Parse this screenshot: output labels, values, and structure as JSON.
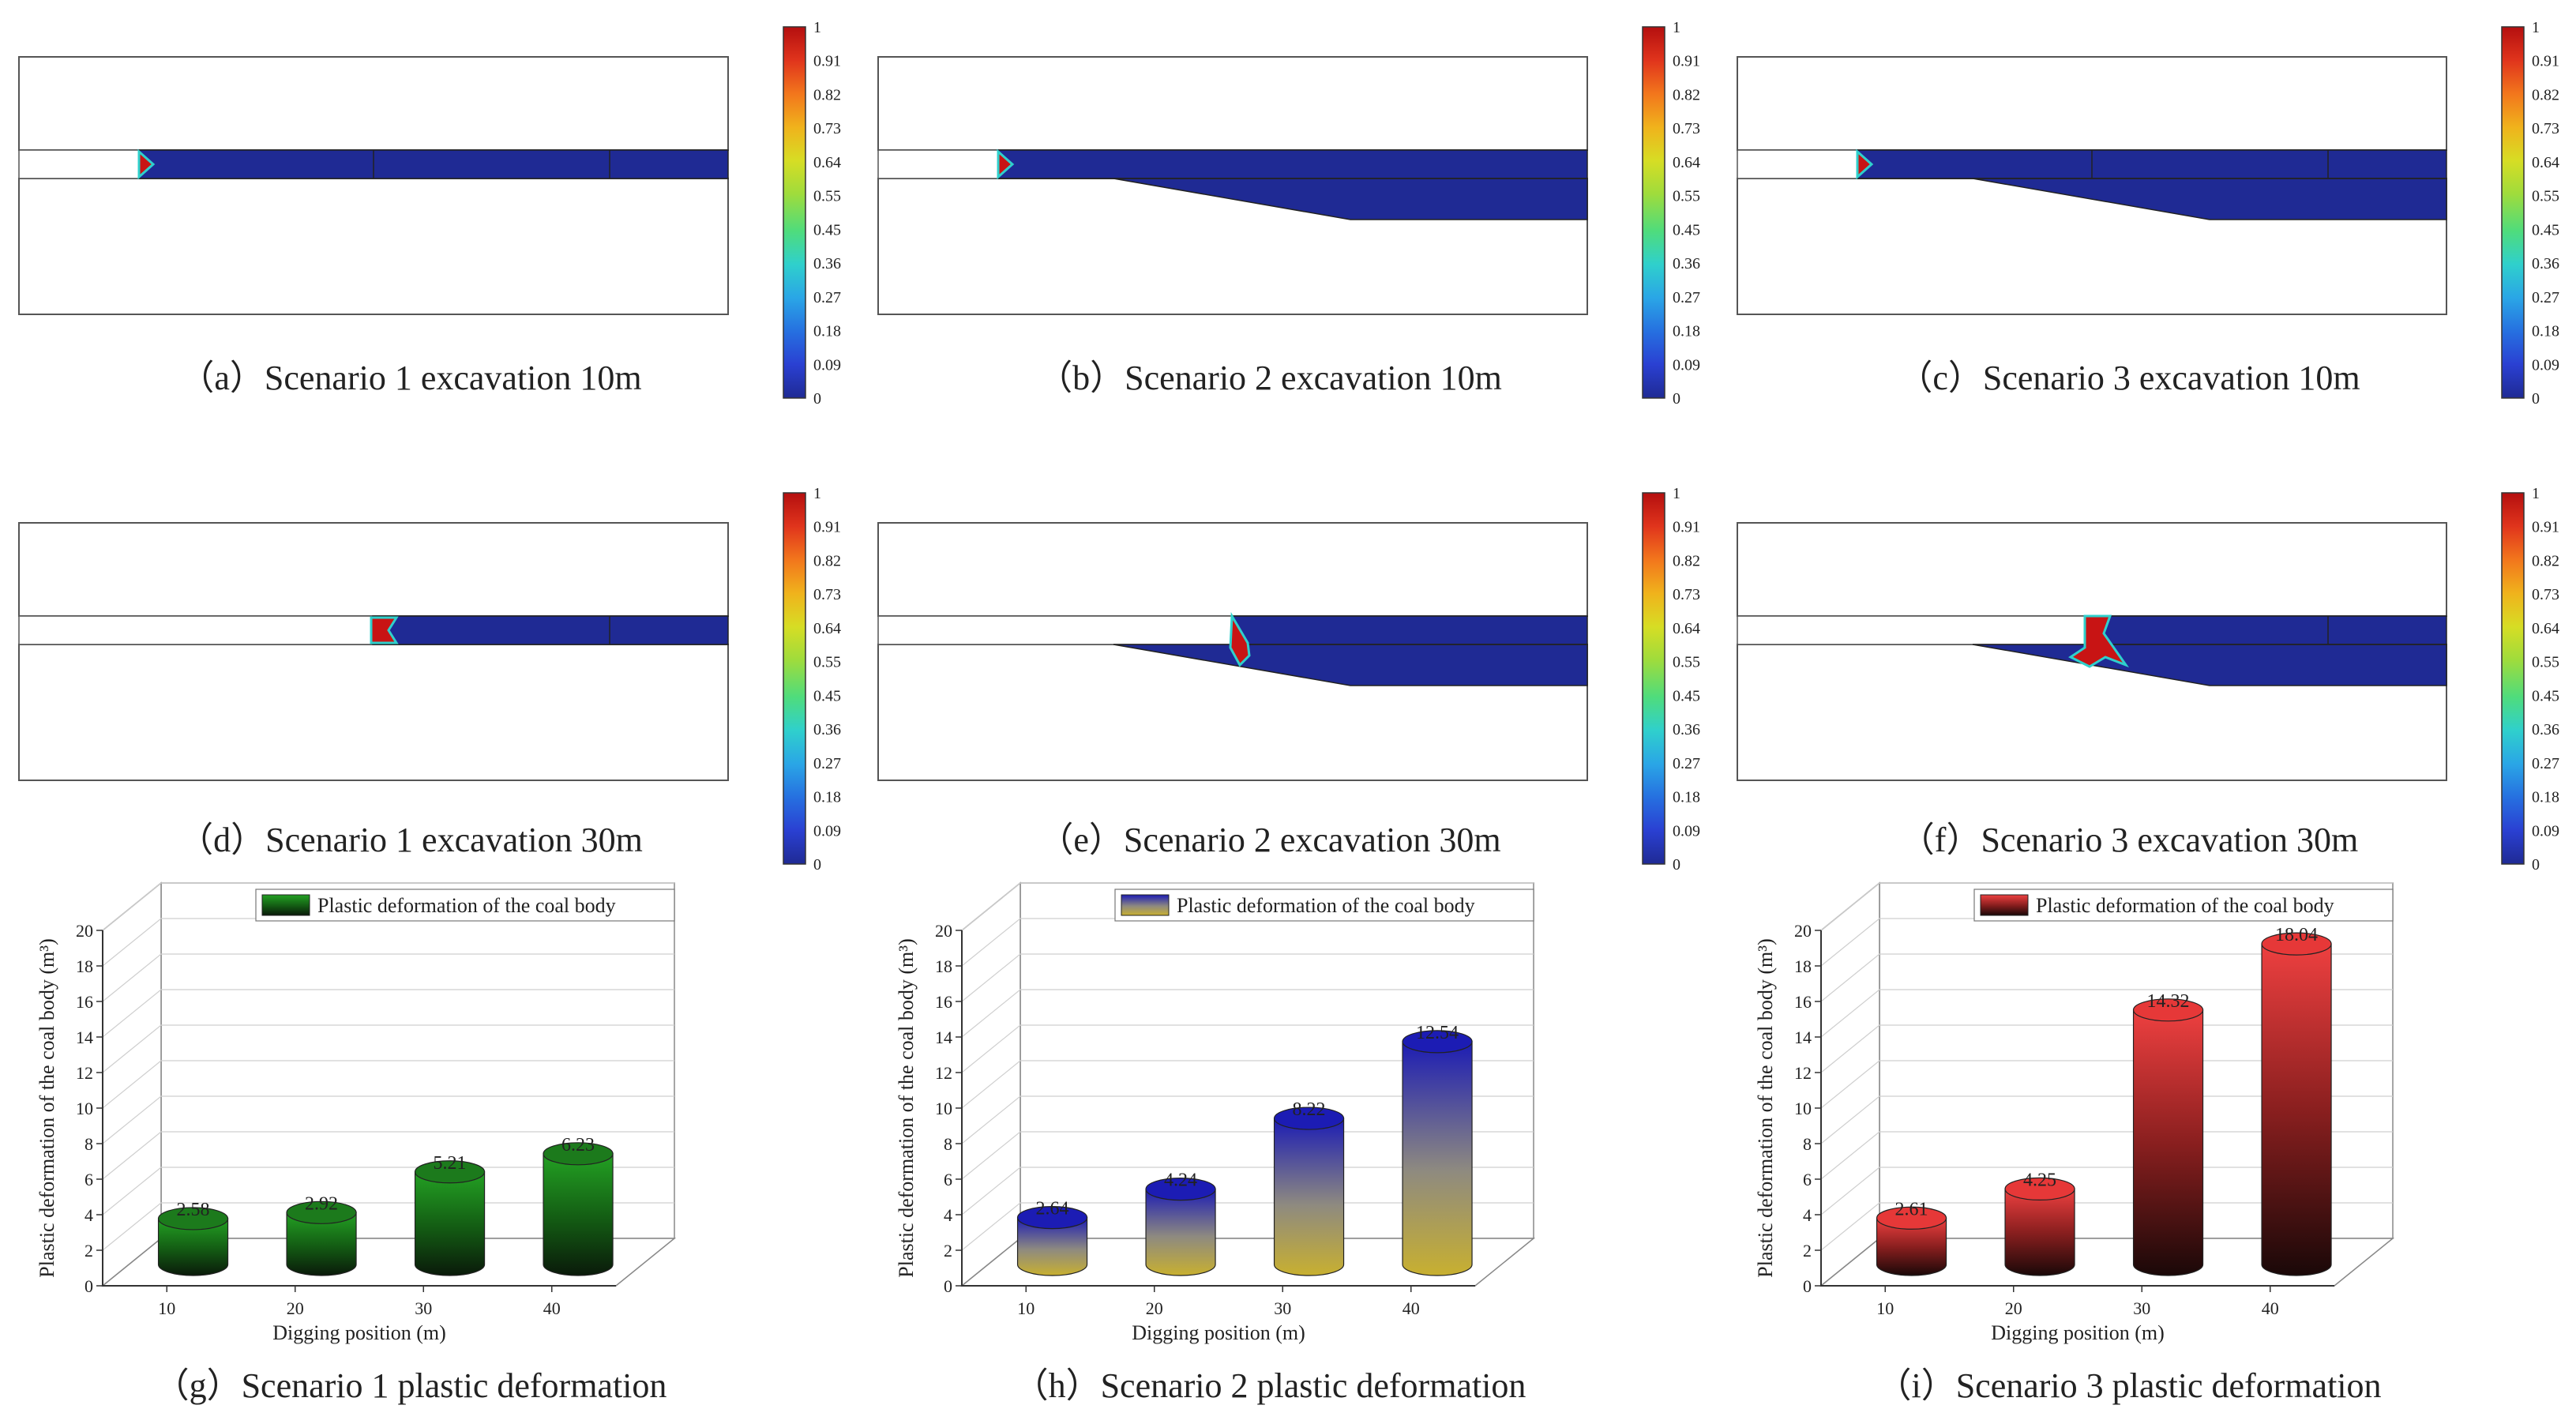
{
  "colorbar": {
    "ticks": [
      "1",
      "0.91",
      "0.82",
      "0.73",
      "0.64",
      "0.55",
      "0.45",
      "0.36",
      "0.27",
      "0.18",
      "0.09",
      "0"
    ],
    "colors": [
      "#b40f0f",
      "#e0341c",
      "#f2761c",
      "#f0b21c",
      "#d7dd24",
      "#9fdc3c",
      "#4fdc7c",
      "#2fd0cc",
      "#2aa6e6",
      "#2670e0",
      "#2a40d2",
      "#1f2a94"
    ]
  },
  "sim_panels": [
    {
      "id": "a",
      "caption": "（a）Scenario 1 excavation 10m",
      "scenario": 1,
      "excavation_m": 10,
      "plastic_zone": "small tip at face"
    },
    {
      "id": "b",
      "caption": "（b）Scenario 2 excavation 10m",
      "scenario": 2,
      "excavation_m": 10,
      "plastic_zone": "small tip at face"
    },
    {
      "id": "c",
      "caption": "（c）Scenario 3 excavation 10m",
      "scenario": 3,
      "excavation_m": 10,
      "plastic_zone": "small tip at face"
    },
    {
      "id": "d",
      "caption": "（d）Scenario 1 excavation 30m",
      "scenario": 1,
      "excavation_m": 30,
      "plastic_zone": "block at face"
    },
    {
      "id": "e",
      "caption": "（e）Scenario 2 excavation 30m",
      "scenario": 2,
      "excavation_m": 30,
      "plastic_zone": "block extending into lower layer"
    },
    {
      "id": "f",
      "caption": "（f）Scenario 3 excavation 30m",
      "scenario": 3,
      "excavation_m": 30,
      "plastic_zone": "larger block extending into lower layer"
    }
  ],
  "chart_data": [
    {
      "type": "bar",
      "caption": "（g）Scenario 1 plastic deformation",
      "categories": [
        "10",
        "20",
        "30",
        "40"
      ],
      "series": [
        {
          "name": "Plastic deformation of the coal body",
          "values": [
            2.58,
            2.92,
            5.21,
            6.23
          ],
          "color": "#1f8a1f"
        }
      ],
      "value_labels": [
        "2.58",
        "2.92",
        "5.21",
        "6.23"
      ],
      "xlabel": "Digging position (m)",
      "ylabel": "Plastic deformation of the coal body (m³)",
      "ylim": [
        0,
        20
      ],
      "yticks": [
        "0",
        "2",
        "4",
        "6",
        "8",
        "10",
        "12",
        "14",
        "16",
        "18",
        "20"
      ],
      "grid": true,
      "legend": "top-right",
      "style": "3d-cylinder"
    },
    {
      "type": "bar",
      "caption": "（h）Scenario 2 plastic deformation",
      "categories": [
        "10",
        "20",
        "30",
        "40"
      ],
      "series": [
        {
          "name": "Plastic deformation of the coal body",
          "values": [
            2.64,
            4.24,
            8.22,
            12.54
          ],
          "color": "#2626b8"
        }
      ],
      "value_labels": [
        "2.64",
        "4.24",
        "8.22",
        "12.54"
      ],
      "xlabel": "Digging position (m)",
      "ylabel": "Plastic deformation of the coal body (m³)",
      "ylim": [
        0,
        20
      ],
      "yticks": [
        "0",
        "2",
        "4",
        "6",
        "8",
        "10",
        "12",
        "14",
        "16",
        "18",
        "20"
      ],
      "grid": true,
      "legend": "top-right",
      "style": "3d-cylinder"
    },
    {
      "type": "bar",
      "caption": "（i）Scenario 3 plastic deformation",
      "categories": [
        "10",
        "20",
        "30",
        "40"
      ],
      "series": [
        {
          "name": "Plastic deformation of the coal body",
          "values": [
            2.61,
            4.25,
            14.32,
            18.04
          ],
          "color": "#e83a3a"
        }
      ],
      "value_labels": [
        "2.61",
        "4.25",
        "14.32",
        "18.04"
      ],
      "xlabel": "Digging position (m)",
      "ylabel": "Plastic deformation of the coal body (m³)",
      "ylim": [
        0,
        20
      ],
      "yticks": [
        "0",
        "2",
        "4",
        "6",
        "8",
        "10",
        "12",
        "14",
        "16",
        "18",
        "20"
      ],
      "grid": true,
      "legend": "top-right",
      "style": "3d-cylinder"
    }
  ]
}
